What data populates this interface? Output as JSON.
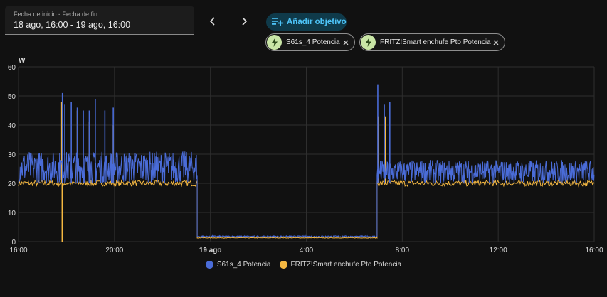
{
  "date_range": {
    "label": "Fecha de inicio - Fecha de fin",
    "value": "18 ago, 16:00 - 19 ago, 16:00"
  },
  "add_target": {
    "label": "Añadir objetivo"
  },
  "chips": [
    {
      "label": "S61s_4 Potencia"
    },
    {
      "label": "FRITZ!Smart enchufe Pto Potencia"
    }
  ],
  "colors": {
    "series1": "#4a6cd8",
    "series2": "#f5b841",
    "grid": "#2e2e2e",
    "axis_text": "#d8d8d8"
  },
  "chart_data": {
    "type": "line",
    "ylabel": "W",
    "ylim": [
      0,
      60
    ],
    "yticks": [
      "0",
      "10",
      "20",
      "30",
      "40",
      "50",
      "60"
    ],
    "xlim_hours": [
      0,
      24
    ],
    "xticks": [
      {
        "h": 0,
        "label": "16:00"
      },
      {
        "h": 4,
        "label": "20:00"
      },
      {
        "h": 8,
        "label": "19 ago"
      },
      {
        "h": 12,
        "label": "4:00"
      },
      {
        "h": 16,
        "label": "8:00"
      },
      {
        "h": 20,
        "label": "12:00"
      },
      {
        "h": 24,
        "label": "16:00"
      }
    ],
    "series": [
      {
        "name": "S61s_4 Potencia",
        "baseline_segments": [
          {
            "from": 0,
            "to": 7.45,
            "low": 20,
            "high": 31
          },
          {
            "from": 7.45,
            "to": 14.95,
            "low": 1.5,
            "high": 2
          },
          {
            "from": 14.95,
            "to": 24,
            "low": 20,
            "high": 28
          }
        ],
        "spikes": [
          {
            "h": 1.83,
            "v": 51
          },
          {
            "h": 1.93,
            "v": 47
          },
          {
            "h": 2.2,
            "v": 48
          },
          {
            "h": 2.45,
            "v": 46
          },
          {
            "h": 2.7,
            "v": 45
          },
          {
            "h": 2.95,
            "v": 45
          },
          {
            "h": 3.2,
            "v": 49
          },
          {
            "h": 3.6,
            "v": 45
          },
          {
            "h": 3.95,
            "v": 46
          },
          {
            "h": 14.98,
            "v": 54
          },
          {
            "h": 15.25,
            "v": 47
          },
          {
            "h": 15.48,
            "v": 48
          }
        ]
      },
      {
        "name": "FRITZ!Smart enchufe Pto Potencia",
        "baseline_segments": [
          {
            "from": 0,
            "to": 7.45,
            "low": 19,
            "high": 21
          },
          {
            "from": 7.45,
            "to": 14.95,
            "low": 1.2,
            "high": 1.4
          },
          {
            "from": 14.95,
            "to": 24,
            "low": 19,
            "high": 21
          }
        ],
        "spikes": [
          {
            "h": 1.8,
            "v": 48
          },
          {
            "h": 2.45,
            "v": 45
          },
          {
            "h": 2.95,
            "v": 41
          },
          {
            "h": 3.95,
            "v": 40
          },
          {
            "h": 15.0,
            "v": 43
          },
          {
            "h": 15.3,
            "v": 43
          }
        ],
        "dips": [
          {
            "h": 1.82,
            "v": 0
          }
        ]
      }
    ],
    "legend_position": "bottom-center",
    "grid": true
  }
}
